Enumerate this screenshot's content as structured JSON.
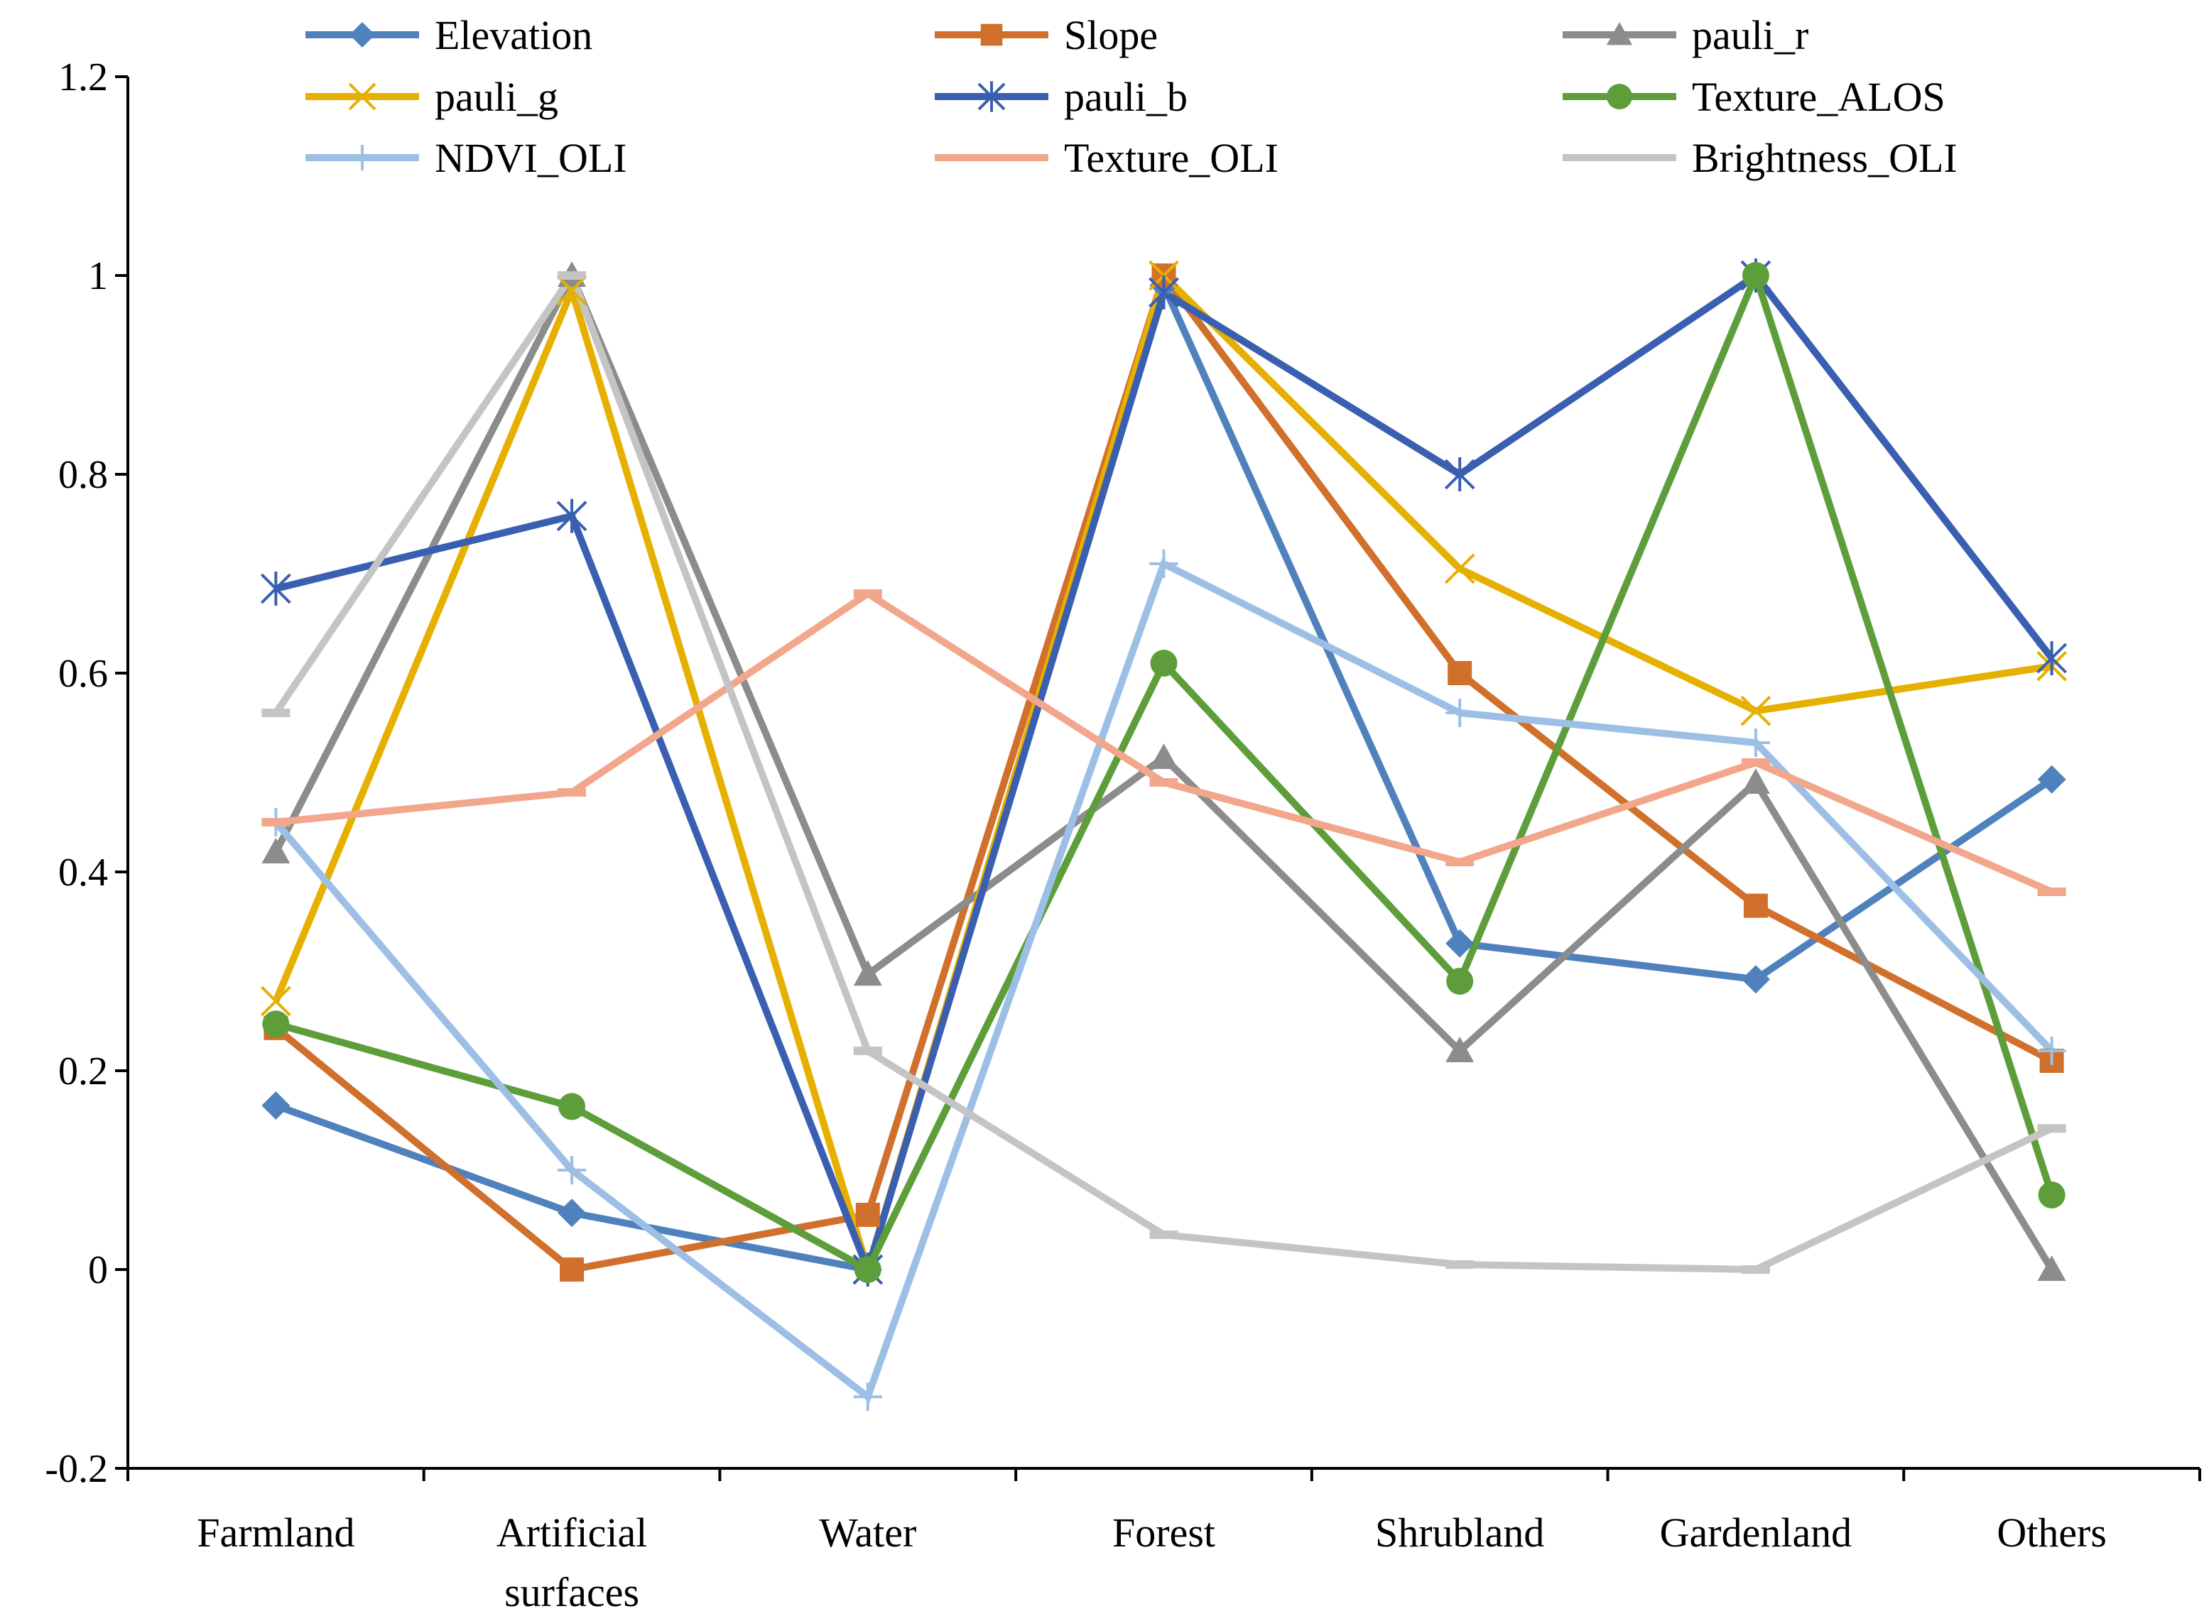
{
  "chart_data": {
    "type": "line",
    "title": "",
    "xlabel": "",
    "ylabel": "",
    "ylim": [
      -0.2,
      1.2
    ],
    "yticks": [
      "-0.2",
      "0",
      "0.2",
      "0.4",
      "0.6",
      "0.8",
      "1",
      "1.2"
    ],
    "grid": false,
    "legend_position": "top",
    "categories": [
      [
        "Farmland"
      ],
      [
        "Artificial",
        "surfaces"
      ],
      [
        "Water"
      ],
      [
        "Forest"
      ],
      [
        "Shrubland"
      ],
      [
        "Gardenland"
      ],
      [
        "Others"
      ]
    ],
    "series": [
      {
        "name": "Elevation",
        "color": "#4f81bd",
        "marker": "diamond",
        "values": [
          0.165,
          0.057,
          0.0,
          0.99,
          0.328,
          0.292,
          0.493
        ]
      },
      {
        "name": "Slope",
        "color": "#d0702c",
        "marker": "square",
        "values": [
          0.243,
          0.0,
          0.055,
          1.0,
          0.6,
          0.366,
          0.21
        ]
      },
      {
        "name": "pauli_r",
        "color": "#8c8c8c",
        "marker": "triangle",
        "values": [
          0.42,
          1.0,
          0.297,
          0.515,
          0.22,
          0.49,
          0.0
        ]
      },
      {
        "name": "pauli_g",
        "color": "#e6b000",
        "marker": "x",
        "values": [
          0.27,
          0.985,
          0.0,
          1.0,
          0.705,
          0.562,
          0.607
        ]
      },
      {
        "name": "pauli_b",
        "color": "#3a5fb0",
        "marker": "star",
        "values": [
          0.685,
          0.758,
          0.0,
          0.983,
          0.8,
          1.0,
          0.615
        ]
      },
      {
        "name": "Texture_ALOS",
        "color": "#5d9e3b",
        "marker": "circle",
        "values": [
          0.247,
          0.164,
          0.0,
          0.61,
          0.29,
          1.0,
          0.075
        ]
      },
      {
        "name": "NDVI_OLI",
        "color": "#9dbfe6",
        "marker": "plus",
        "values": [
          0.45,
          0.1,
          -0.128,
          0.71,
          0.56,
          0.53,
          0.22
        ]
      },
      {
        "name": "Texture_OLI",
        "color": "#f2a68c",
        "marker": "dash",
        "values": [
          0.45,
          0.48,
          0.68,
          0.49,
          0.41,
          0.51,
          0.38
        ]
      },
      {
        "name": "Brightness_OLI",
        "color": "#c4c4c4",
        "marker": "dash",
        "values": [
          0.56,
          1.0,
          0.22,
          0.035,
          0.005,
          0.0,
          0.142
        ]
      }
    ]
  }
}
